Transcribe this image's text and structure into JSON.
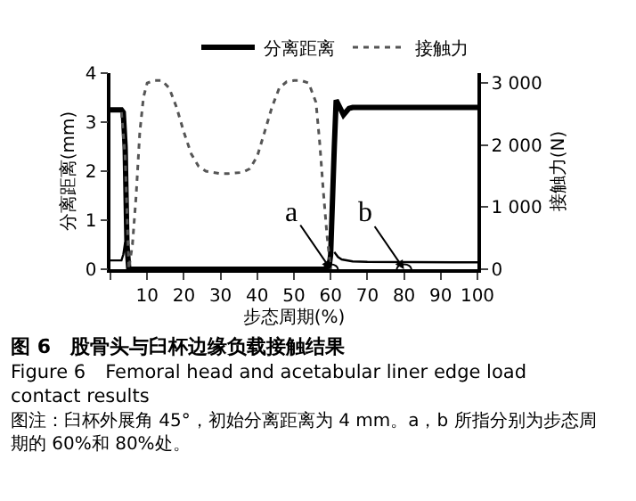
{
  "chart_data": {
    "type": "line",
    "title": "图 6　股骨头与臼杯边缘负载接触结果",
    "subtitle": "Figure 6　Femoral head and acetabular liner edge load contact results",
    "xlabel": "步态周期(%)",
    "ylabel": "分离距离(mm)",
    "y2label": "接触力(N)",
    "xlim": [
      0,
      100
    ],
    "xticks": [
      {
        "value": 0,
        "label": null
      },
      10,
      20,
      30,
      40,
      50,
      60,
      70,
      80,
      90,
      100
    ],
    "ylim": [
      0,
      4
    ],
    "yticks": [
      0,
      1,
      2,
      3,
      4
    ],
    "y2lim": [
      0,
      3160
    ],
    "y2ticks": [
      0,
      {
        "value": 1000,
        "label": "1 000"
      },
      {
        "value": 2000,
        "label": "2 000"
      },
      {
        "value": 3000,
        "label": "3 000"
      }
    ],
    "legend": "top",
    "marker": "none",
    "series": [
      {
        "name": "分离距离",
        "color": "#000000",
        "line_style": "solid",
        "x": [
          0,
          3,
          3.5,
          4,
          4.5,
          5,
          59.5,
          60,
          61,
          61.5,
          62.5,
          63.5,
          65,
          66,
          100
        ],
        "values": [
          3.25,
          3.25,
          3.2,
          2.5,
          0.5,
          0,
          0,
          0.3,
          2.5,
          3.45,
          3.3,
          3.15,
          3.28,
          3.3,
          3.3
        ]
      },
      {
        "name": "接触力",
        "color": "#555555",
        "line_style": "dotted",
        "axis": "y2",
        "x": [
          3,
          4,
          5,
          6,
          7,
          8,
          9,
          10,
          12,
          14,
          16,
          18,
          20,
          22,
          24,
          26,
          28,
          30,
          32,
          34,
          36,
          38,
          40,
          42,
          44,
          46,
          48,
          50,
          52,
          54,
          56,
          57,
          58,
          59,
          60
        ],
        "values": [
          2530,
          1820,
          0,
          400,
          1190,
          2210,
          2770,
          3000,
          3040,
          3040,
          2920,
          2610,
          2210,
          1860,
          1660,
          1580,
          1560,
          1540,
          1540,
          1550,
          1560,
          1620,
          1820,
          2210,
          2610,
          2920,
          3020,
          3040,
          3040,
          3000,
          2690,
          2050,
          1260,
          550,
          0
        ]
      },
      {
        "color": "#000000",
        "line_style": "solid",
        "x": [
          0,
          3,
          3.5,
          4,
          4.5,
          5,
          60,
          61,
          62,
          63,
          66,
          70,
          100
        ],
        "values": [
          0.18,
          0.18,
          0.3,
          0.55,
          0.3,
          0,
          null,
          0.35,
          0.25,
          0.2,
          0.16,
          0.15,
          0.14
        ]
      }
    ],
    "annotations": [
      {
        "text": "a",
        "x": 60,
        "y": 0
      },
      {
        "text": "b",
        "x": 80,
        "y": 0
      },
      "图注：臼杯外展角 45°，初始分离距离为 4 mm。a，b 所指分别为步态周期的 60%和 80%处。"
    ]
  }
}
